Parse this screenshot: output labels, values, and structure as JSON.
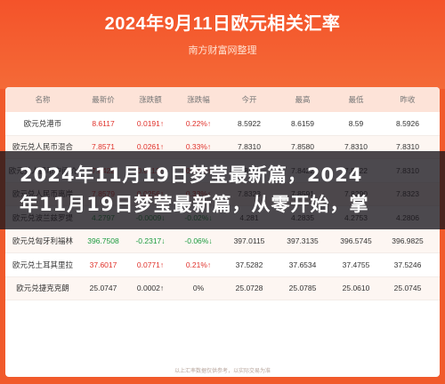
{
  "header": {
    "title": "2024年9月11日欧元相关汇率",
    "subtitle": "南方财富网整理"
  },
  "table": {
    "columns": [
      "名称",
      "最新价",
      "涨跌额",
      "涨跌幅",
      "今开",
      "最高",
      "最低",
      "昨收"
    ],
    "rows": [
      {
        "name": "欧元兑港币",
        "latest": "8.6117",
        "change": "0.0191↑",
        "pct": "0.22%↑",
        "open": "8.5922",
        "high": "8.6159",
        "low": "8.59",
        "prev": "8.5926",
        "dir": "up"
      },
      {
        "name": "欧元兑人民币混合",
        "latest": "7.8571",
        "change": "0.0261↑",
        "pct": "0.33%↑",
        "open": "7.8310",
        "high": "7.8580",
        "low": "7.8310",
        "prev": "7.8310",
        "dir": "up"
      },
      {
        "name": "欧元兑人民币中间价",
        "latest": "7.8422",
        "change": "0.0112↑",
        "pct": "0.14%↑",
        "open": "7.8422",
        "high": "7.8422",
        "low": "7.8422",
        "prev": "7.8310",
        "dir": "up"
      },
      {
        "name": "欧元兑人民币离岸",
        "latest": "7.8579",
        "change": "0.0256↑",
        "pct": "0.33%↑",
        "open": "7.8323",
        "high": "7.8591",
        "low": "7.8290",
        "prev": "7.8323",
        "dir": "up"
      },
      {
        "name": "欧元兑波兰兹罗提",
        "latest": "4.2797",
        "change": "-0.0009↓",
        "pct": "-0.02%↓",
        "open": "4.281",
        "high": "4.2835",
        "low": "4.2753",
        "prev": "4.2806",
        "dir": "down"
      },
      {
        "name": "欧元兑匈牙利福林",
        "latest": "396.7508",
        "change": "-0.2317↓",
        "pct": "-0.06%↓",
        "open": "397.0115",
        "high": "397.3135",
        "low": "396.5745",
        "prev": "396.9825",
        "dir": "down"
      },
      {
        "name": "欧元兑土耳其里拉",
        "latest": "37.6017",
        "change": "0.0771↑",
        "pct": "0.21%↑",
        "open": "37.5282",
        "high": "37.6534",
        "low": "37.4755",
        "prev": "37.5246",
        "dir": "up"
      },
      {
        "name": "欧元兑捷克克朗",
        "latest": "25.0747",
        "change": "0.0002↑",
        "pct": "0%",
        "open": "25.0728",
        "high": "25.0785",
        "low": "25.0610",
        "prev": "25.0745",
        "dir": "flat"
      }
    ],
    "footnote": "以上汇率数据仅供参考，以实际交易为准"
  },
  "banner": {
    "line1": "2024年11月19日梦莹最新篇，2024",
    "line2": "年11月19日梦莹最新篇，从零开始，掌"
  },
  "colors": {
    "up": "#e0322b",
    "down": "#1a9a3e",
    "header_bg": "#f4532a"
  }
}
